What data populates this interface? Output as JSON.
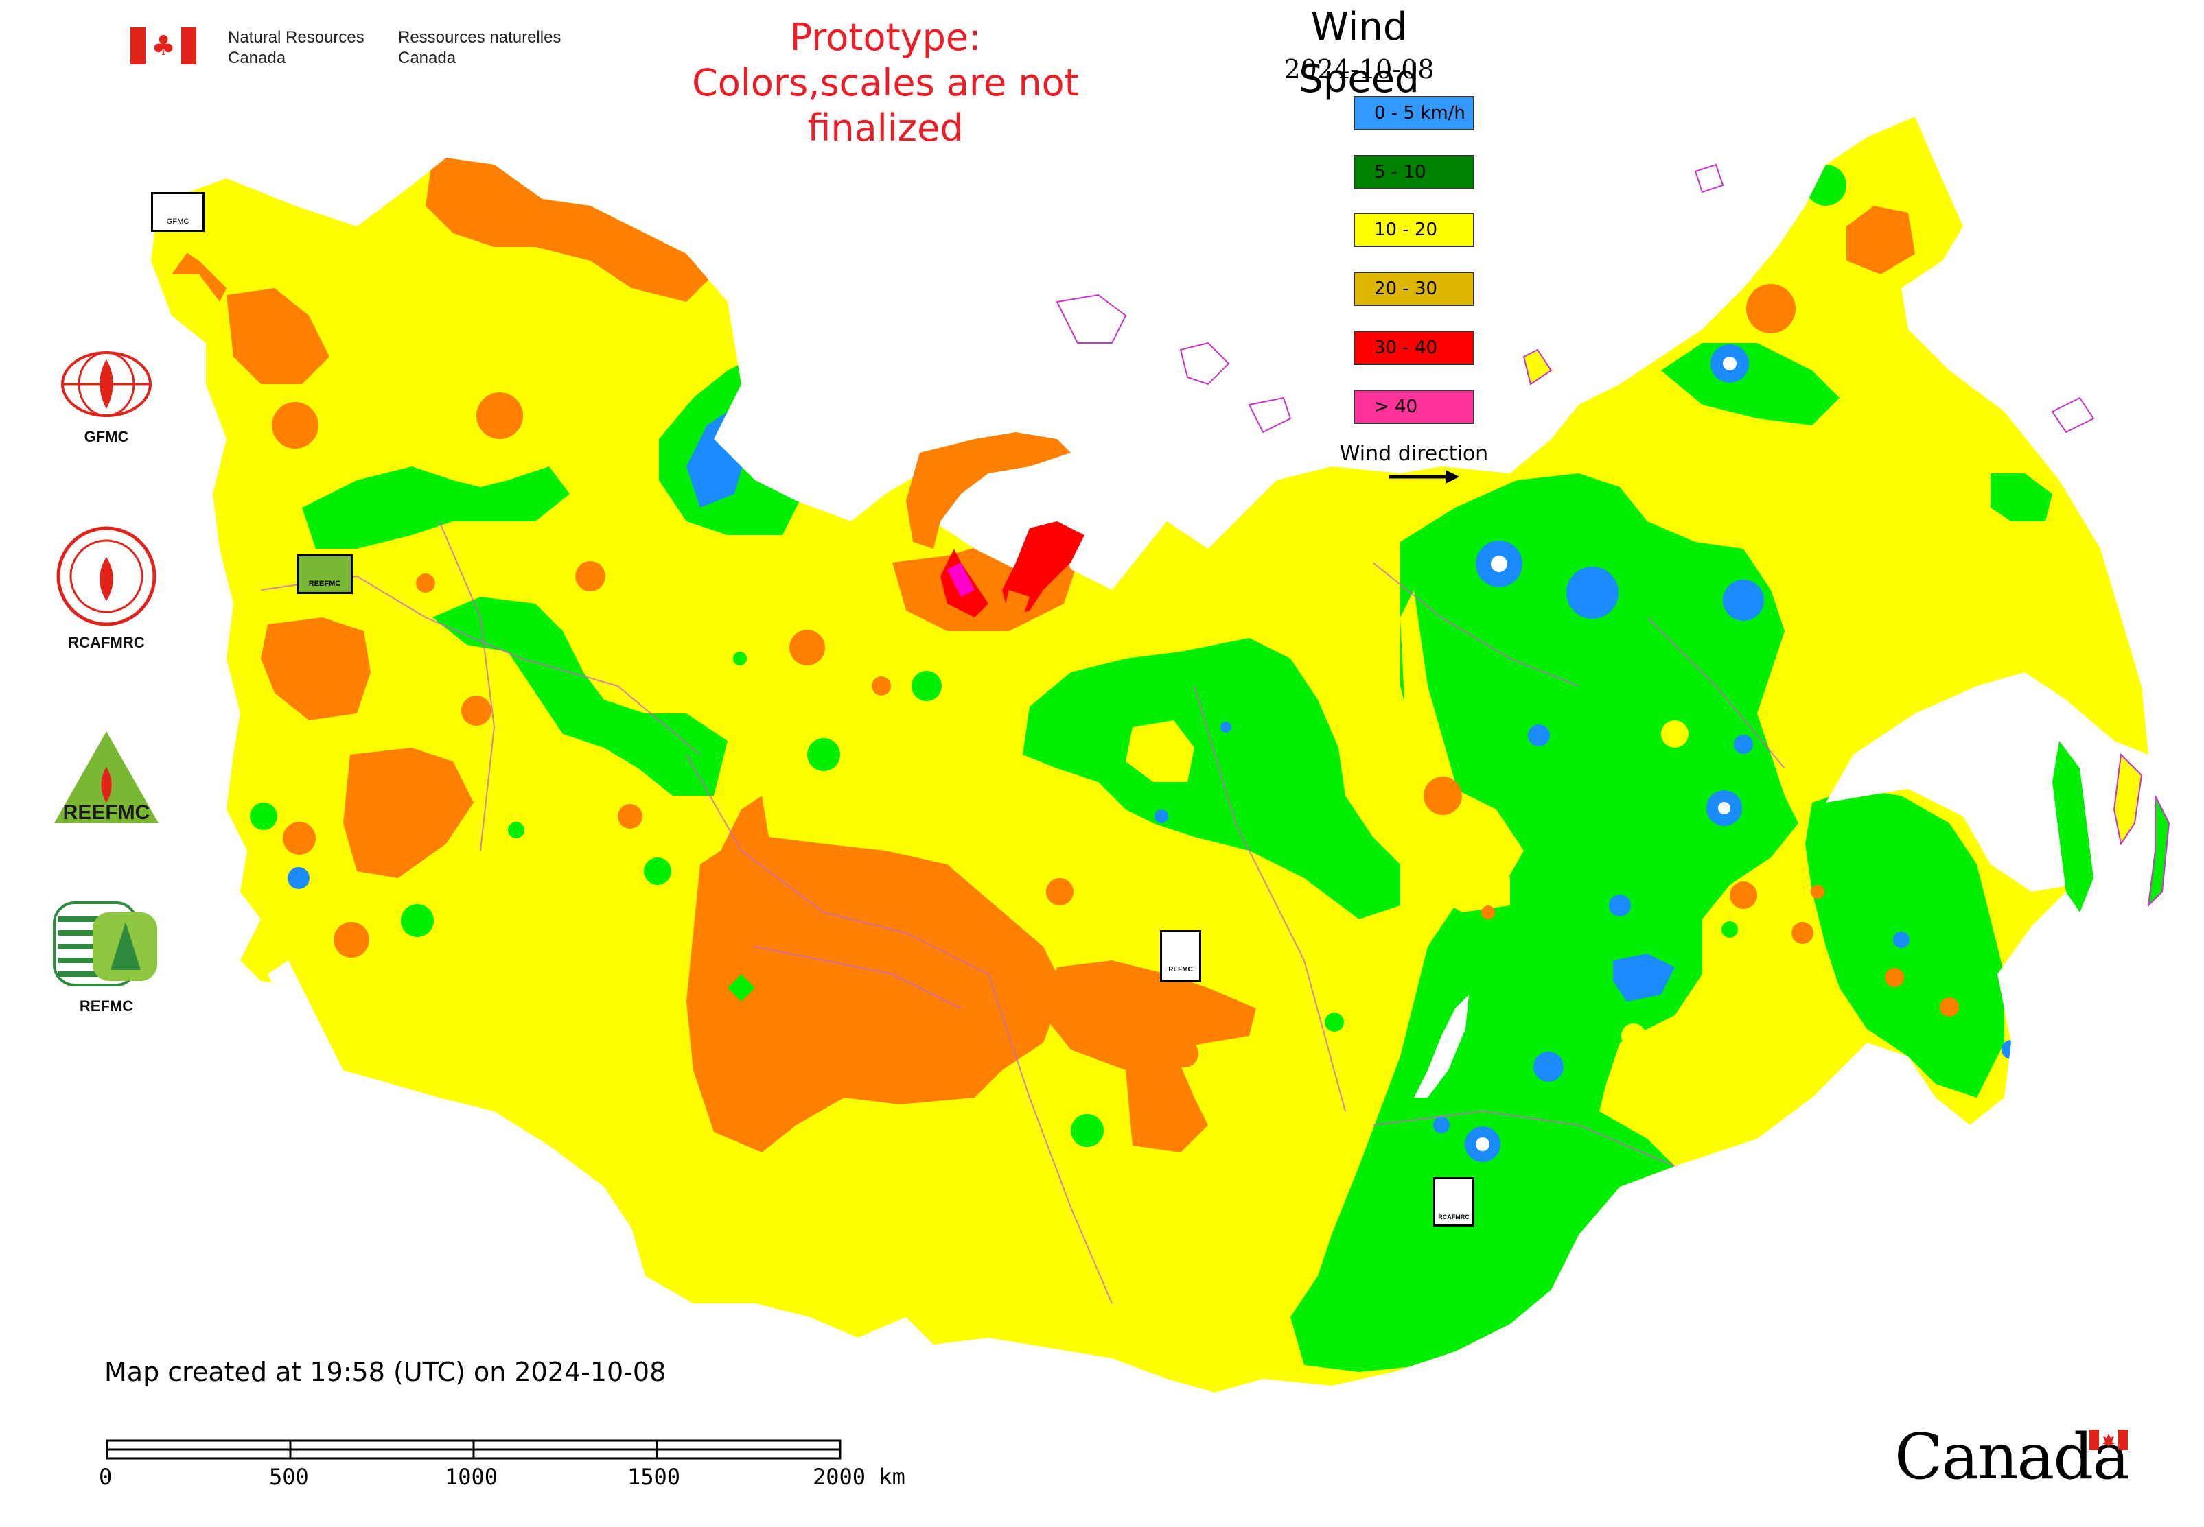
{
  "header": {
    "nrcan_en_1": "Natural Resources",
    "nrcan_en_2": "Canada",
    "nrcan_fr_1": "Ressources naturelles",
    "nrcan_fr_2": "Canada",
    "prototype_line1": "Prototype:",
    "prototype_line2": "Colors,scales are not finalized"
  },
  "legend": {
    "title": "Wind Speed",
    "date": "2024-10-08",
    "items": [
      {
        "label": "0 - 5 km/h",
        "color": "#3399ff"
      },
      {
        "label": "5 - 10",
        "color": "#008000"
      },
      {
        "label": "10 - 20",
        "color": "#ffff00"
      },
      {
        "label": "20 - 30",
        "color": "#ddb600"
      },
      {
        "label": "30 - 40",
        "color": "#ff0000"
      },
      {
        "label": "> 40",
        "color": "#ff3399"
      }
    ],
    "wind_direction_label": "Wind direction"
  },
  "side_logos": [
    {
      "label": "GFMC",
      "icon": "gfmc-logo-icon"
    },
    {
      "label": "RCAFMRC",
      "icon": "rcafmrc-logo-icon"
    },
    {
      "label": "",
      "icon": "reefmc-logo-icon",
      "wordmark": "REEFMC"
    },
    {
      "label": "REFMC",
      "icon": "refmc-logo-icon"
    }
  ],
  "map_markers": {
    "gfmc": "GFMC",
    "reefmc": "REEFMC",
    "refmc": "REFMC",
    "rcafmrc": "RCAFMRC"
  },
  "map_colors": {
    "yellow": "#ffff00",
    "orange": "#ff8000",
    "green": "#00ee00",
    "blue": "#1a8cff",
    "red": "#ff0000",
    "magenta": "#ff00cc",
    "border": "#cc66cc"
  },
  "footer": {
    "created": "Map created at 19:58 (UTC) on 2024-10-08",
    "scale_labels": [
      "0",
      "500",
      "1000",
      "1500",
      "2000 km"
    ],
    "canada_wordmark": "Canada"
  }
}
